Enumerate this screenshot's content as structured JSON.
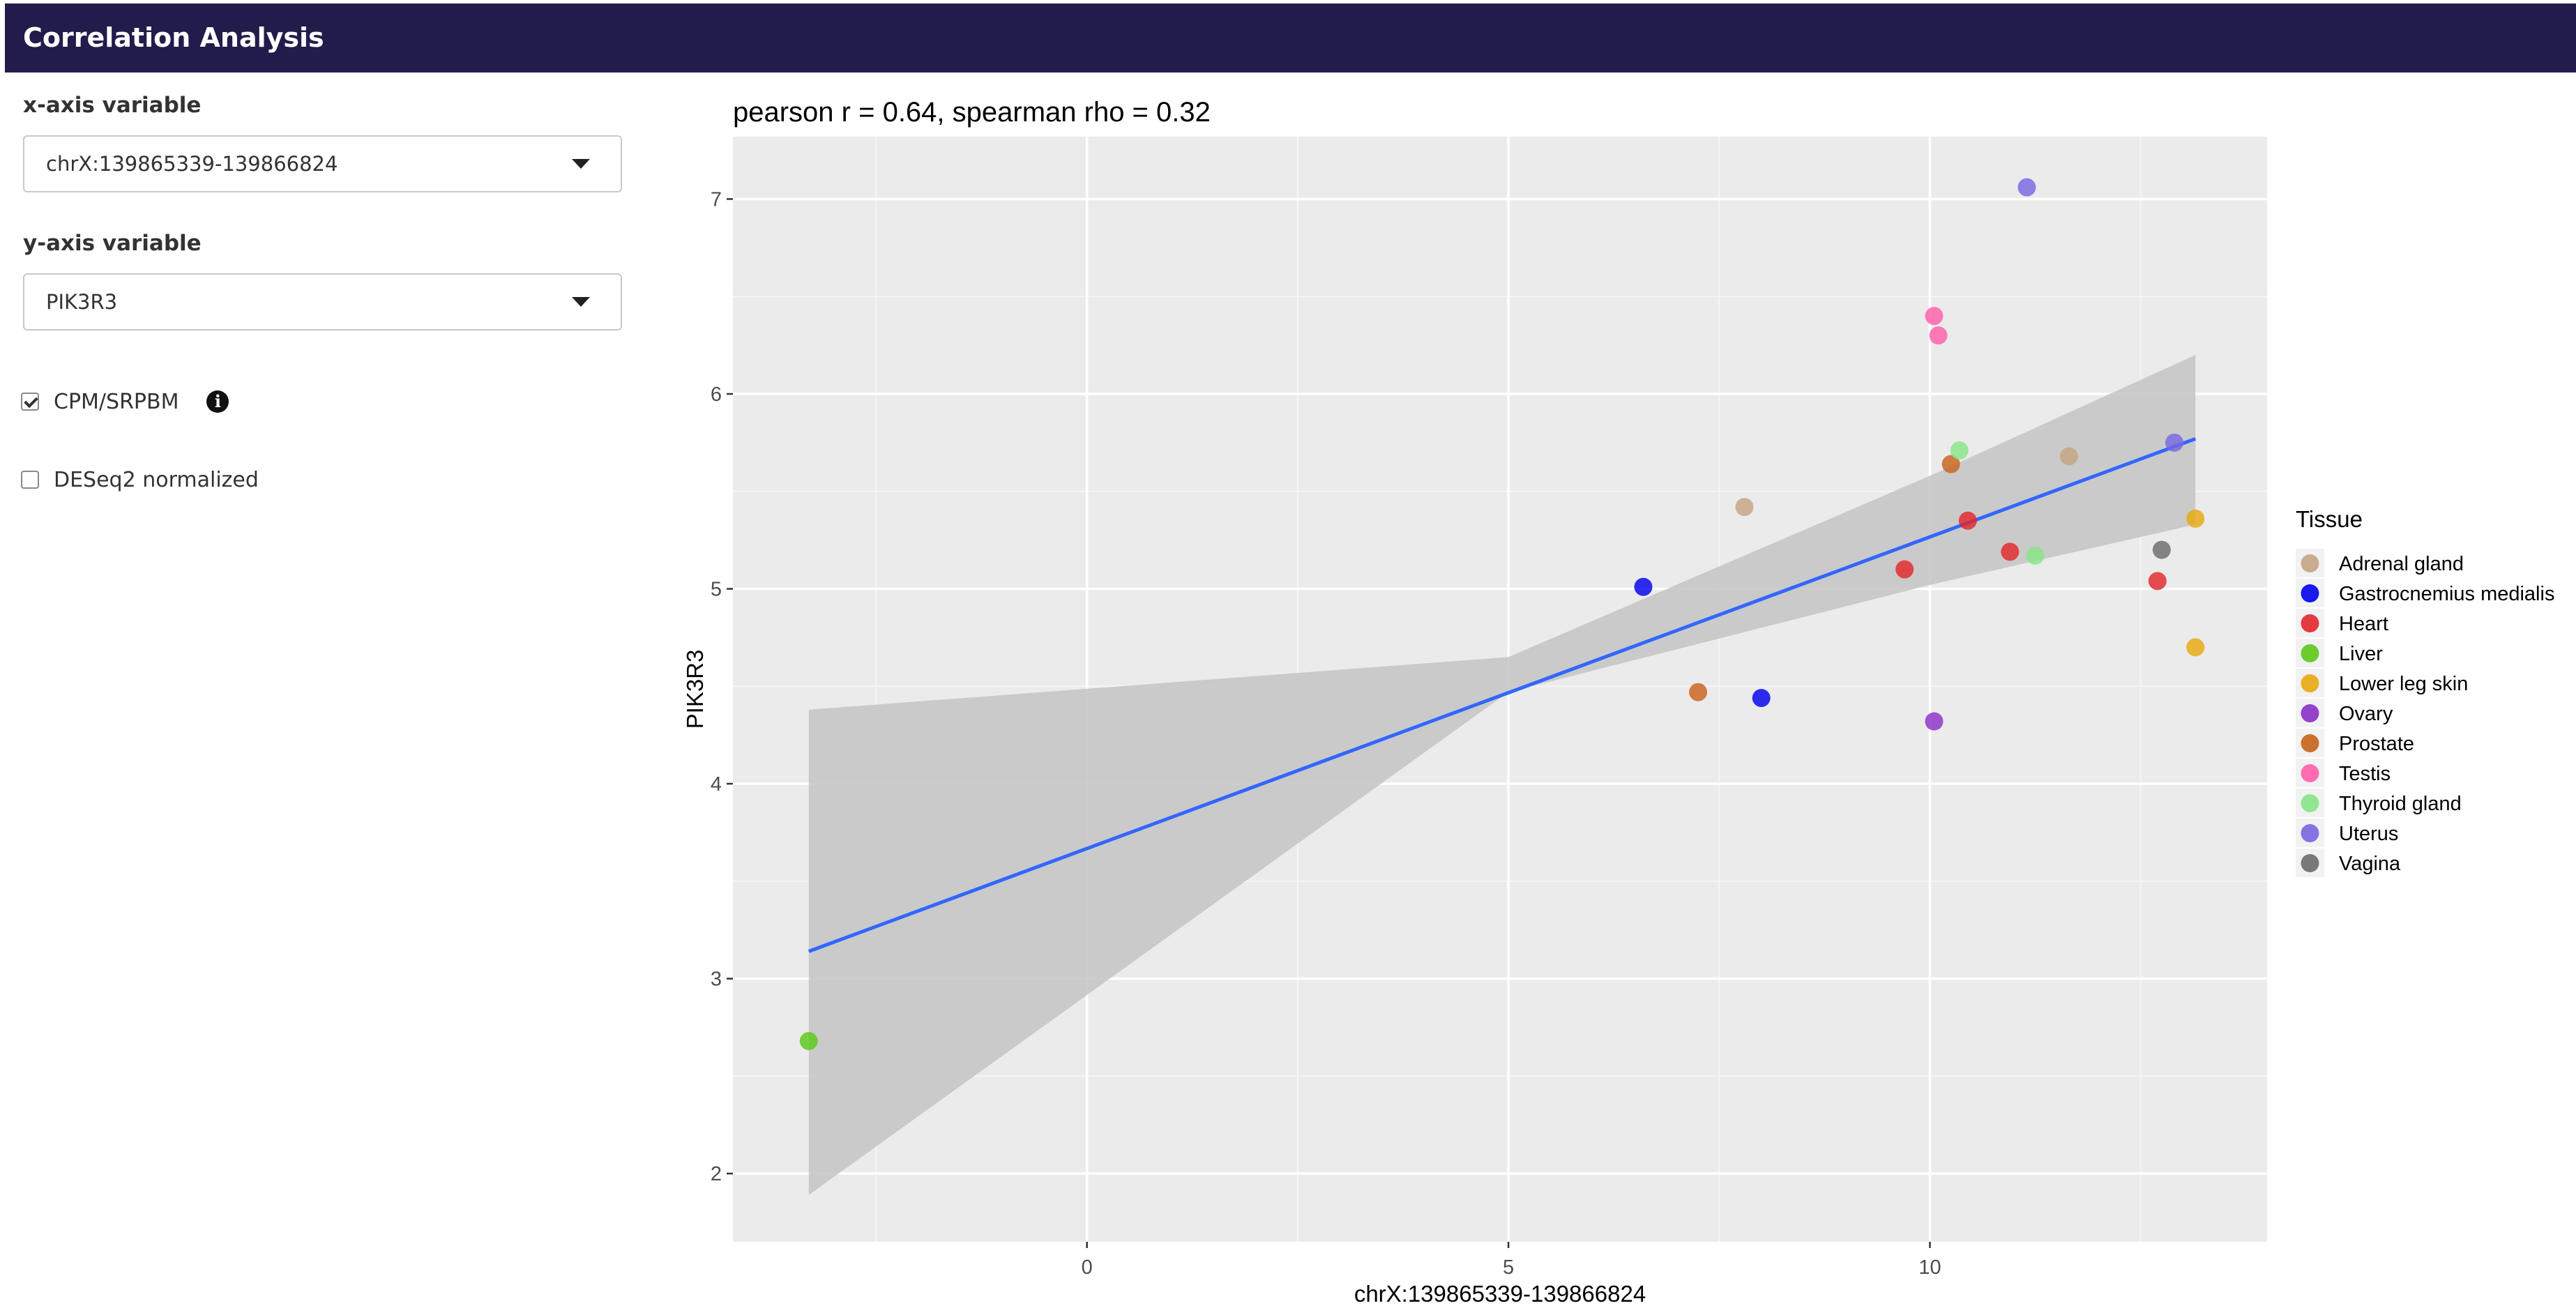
{
  "header": {
    "title": "Correlation Analysis"
  },
  "controls": {
    "x_label": "x-axis variable",
    "x_value": "chrX:139865339-139866824",
    "y_label": "y-axis variable",
    "y_value": "PIK3R3",
    "cpm_label": "CPM/SRPBM",
    "cpm_checked": true,
    "deseq_label": "DESeq2 normalized",
    "deseq_checked": false
  },
  "chart_data": {
    "type": "scatter",
    "title": "pearson r = 0.64, spearman rho = 0.32",
    "xlabel": "chrX:139865339-139866824",
    "ylabel": "PIK3R3",
    "xlim": [
      -4.2,
      14.0
    ],
    "ylim": [
      1.65,
      7.32
    ],
    "x_ticks": [
      0,
      5,
      10
    ],
    "y_ticks": [
      2,
      3,
      4,
      5,
      6,
      7
    ],
    "grid": true,
    "legend_title": "Tissue",
    "legend_position": "right",
    "series": [
      {
        "name": "Adrenal gland",
        "color": "#c4a484",
        "points": [
          [
            7.8,
            5.42
          ],
          [
            11.65,
            5.68
          ]
        ]
      },
      {
        "name": "Gastrocnemius medialis",
        "color": "#0000ee",
        "points": [
          [
            6.6,
            5.01
          ],
          [
            8.0,
            4.44
          ]
        ]
      },
      {
        "name": "Heart",
        "color": "#e3262b",
        "points": [
          [
            9.7,
            5.1
          ],
          [
            10.95,
            5.19
          ],
          [
            12.7,
            5.04
          ],
          [
            10.45,
            5.35
          ]
        ]
      },
      {
        "name": "Liver",
        "color": "#5cc817",
        "points": [
          [
            -3.3,
            2.68
          ]
        ]
      },
      {
        "name": "Lower leg skin",
        "color": "#e6a80f",
        "points": [
          [
            13.15,
            5.36
          ],
          [
            13.15,
            4.7
          ]
        ]
      },
      {
        "name": "Ovary",
        "color": "#8b2fc9",
        "points": [
          [
            10.05,
            4.32
          ]
        ]
      },
      {
        "name": "Prostate",
        "color": "#c8621b",
        "points": [
          [
            10.25,
            5.64
          ],
          [
            7.25,
            4.47
          ]
        ]
      },
      {
        "name": "Testis",
        "color": "#ff5ea8",
        "points": [
          [
            10.05,
            6.4
          ],
          [
            10.1,
            6.3
          ]
        ]
      },
      {
        "name": "Thyroid gland",
        "color": "#86e586",
        "points": [
          [
            10.35,
            5.71
          ],
          [
            11.25,
            5.17
          ]
        ]
      },
      {
        "name": "Uterus",
        "color": "#7766e0",
        "points": [
          [
            11.15,
            7.06
          ],
          [
            12.9,
            5.75
          ]
        ]
      },
      {
        "name": "Vagina",
        "color": "#6b6b6b",
        "points": [
          [
            12.75,
            5.2
          ]
        ]
      }
    ],
    "fit": {
      "color": "#3366ff",
      "band_color": "#c6c6c6",
      "line": [
        [
          -3.3,
          3.14
        ],
        [
          13.15,
          5.77
        ]
      ],
      "band_lower": [
        [
          -3.3,
          1.89
        ],
        [
          5.0,
          4.47
        ],
        [
          10.0,
          5.02
        ],
        [
          13.15,
          5.33
        ]
      ],
      "band_upper": [
        [
          -3.3,
          4.38
        ],
        [
          5.0,
          4.65
        ],
        [
          10.0,
          5.58
        ],
        [
          13.15,
          6.2
        ]
      ]
    }
  }
}
